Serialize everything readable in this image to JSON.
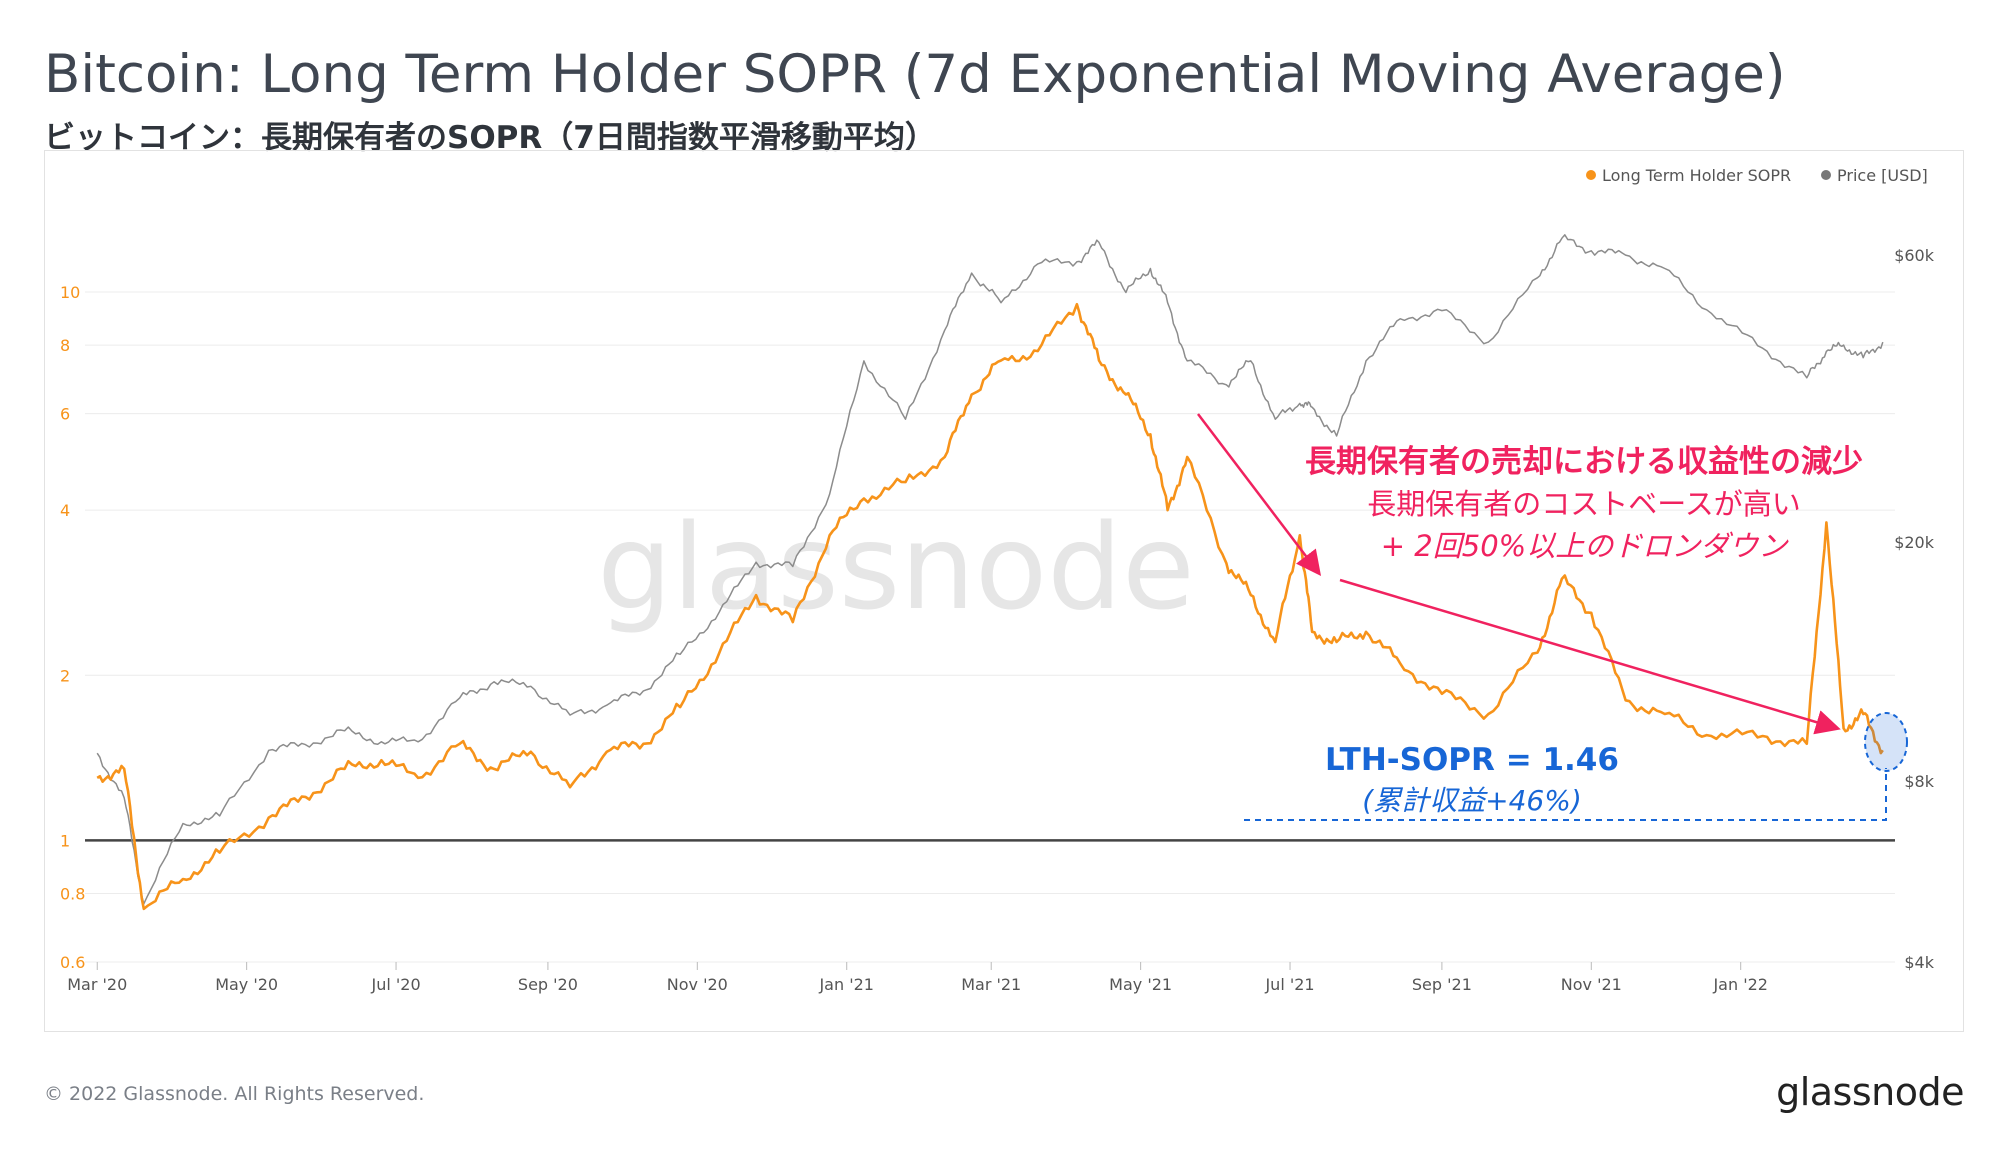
{
  "title": "Bitcoin: Long Term Holder SOPR (7d Exponential Moving Average)",
  "subtitle": "ビットコイン：長期保有者のSOPR（7日間指数平滑移動平均）",
  "watermark": "glassnode",
  "footer": "© 2022 Glassnode. All Rights Reserved.",
  "brand": "glassnode",
  "annotations": {
    "headline": "長期保有者の売却における収益性の減少",
    "line1": "長期保有者のコストベースが高い",
    "line2": "+ 2回50%以上のドロンダウン",
    "metric": "LTH-SOPR = 1.46",
    "metric_note": "(累計収益+46%)"
  },
  "colors": {
    "sopr": "#f7931a",
    "price": "#8c8c8c",
    "accent": "#f0225f",
    "metric": "#1766d6",
    "baseline": "#444444"
  },
  "chart_data": {
    "type": "line",
    "title": "Bitcoin: Long Term Holder SOPR (7d Exponential Moving Average)",
    "legend_position": "top-right",
    "x_tick_labels": [
      "Mar '20",
      "May '20",
      "Jul '20",
      "Sep '20",
      "Nov '20",
      "Jan '21",
      "Mar '21",
      "May '21",
      "Jul '21",
      "Sep '21",
      "Nov '21",
      "Jan '22"
    ],
    "left_axis": {
      "scale": "log",
      "range": [
        0.6,
        16
      ],
      "tick_labels": [
        "0.6",
        "0.8",
        "1",
        "2",
        "4",
        "6",
        "8",
        "10"
      ]
    },
    "right_axis": {
      "scale": "log",
      "unit": "USD",
      "range": [
        4000,
        80000
      ],
      "tick_labels": [
        "$4k",
        "$8k",
        "$20k",
        "$60k"
      ]
    },
    "reference_line": {
      "value": 1
    },
    "series": [
      {
        "name": "Long Term Holder SOPR",
        "axis": "left",
        "dates": [
          "2020-03-01",
          "2020-03-12",
          "2020-03-20",
          "2020-04-05",
          "2020-04-20",
          "2020-05-10",
          "2020-05-25",
          "2020-06-10",
          "2020-06-25",
          "2020-07-10",
          "2020-07-27",
          "2020-08-10",
          "2020-08-25",
          "2020-09-10",
          "2020-09-25",
          "2020-10-10",
          "2020-10-25",
          "2020-11-10",
          "2020-11-25",
          "2020-12-10",
          "2020-12-25",
          "2021-01-08",
          "2021-01-25",
          "2021-02-10",
          "2021-02-21",
          "2021-03-05",
          "2021-03-20",
          "2021-04-05",
          "2021-04-14",
          "2021-04-25",
          "2021-05-05",
          "2021-05-12",
          "2021-05-20",
          "2021-06-05",
          "2021-06-15",
          "2021-06-25",
          "2021-07-05",
          "2021-07-10",
          "2021-07-20",
          "2021-08-01",
          "2021-08-15",
          "2021-09-01",
          "2021-09-20",
          "2021-10-10",
          "2021-10-20",
          "2021-11-01",
          "2021-11-15",
          "2021-12-01",
          "2021-12-20",
          "2022-01-10",
          "2022-01-28",
          "2022-02-05",
          "2022-02-12",
          "2022-02-20",
          "2022-02-28"
        ],
        "values": [
          1.3,
          1.35,
          0.75,
          0.85,
          0.95,
          1.1,
          1.2,
          1.35,
          1.4,
          1.3,
          1.5,
          1.35,
          1.45,
          1.25,
          1.45,
          1.5,
          1.75,
          2.2,
          2.8,
          2.5,
          3.6,
          4.2,
          4.5,
          5.0,
          6.5,
          7.5,
          7.8,
          9.5,
          7.5,
          6.5,
          5.5,
          4.0,
          5.0,
          3.2,
          2.8,
          2.3,
          3.6,
          2.4,
          2.3,
          2.4,
          2.1,
          1.85,
          1.7,
          2.2,
          3.0,
          2.6,
          1.8,
          1.7,
          1.55,
          1.55,
          1.5,
          3.8,
          1.6,
          1.7,
          1.46
        ]
      },
      {
        "name": "Price [USD]",
        "axis": "right",
        "dates": [
          "2020-03-01",
          "2020-03-12",
          "2020-03-20",
          "2020-04-05",
          "2020-04-20",
          "2020-05-10",
          "2020-05-25",
          "2020-06-10",
          "2020-06-25",
          "2020-07-10",
          "2020-07-27",
          "2020-08-10",
          "2020-08-25",
          "2020-09-10",
          "2020-09-25",
          "2020-10-10",
          "2020-10-25",
          "2020-11-10",
          "2020-11-25",
          "2020-12-10",
          "2020-12-25",
          "2021-01-08",
          "2021-01-25",
          "2021-02-10",
          "2021-02-21",
          "2021-03-05",
          "2021-03-20",
          "2021-04-05",
          "2021-04-14",
          "2021-04-25",
          "2021-05-05",
          "2021-05-12",
          "2021-05-20",
          "2021-06-05",
          "2021-06-15",
          "2021-06-25",
          "2021-07-05",
          "2021-07-10",
          "2021-07-20",
          "2021-08-01",
          "2021-08-15",
          "2021-09-01",
          "2021-09-20",
          "2021-10-10",
          "2021-10-20",
          "2021-11-01",
          "2021-11-15",
          "2021-12-01",
          "2021-12-20",
          "2022-01-10",
          "2022-01-28",
          "2022-02-05",
          "2022-02-12",
          "2022-02-20",
          "2022-02-28"
        ],
        "values": [
          8900,
          7500,
          5000,
          6800,
          7000,
          9000,
          9200,
          9700,
          9300,
          9300,
          11000,
          11700,
          11500,
          10300,
          10700,
          11300,
          13000,
          15300,
          18500,
          18200,
          24000,
          40000,
          32000,
          45000,
          56000,
          50000,
          58000,
          58500,
          63000,
          52000,
          57000,
          50000,
          40000,
          36500,
          40000,
          32000,
          34000,
          33500,
          30000,
          40000,
          47000,
          48500,
          43000,
          55000,
          64000,
          61000,
          60000,
          57000,
          48000,
          42000,
          37500,
          41500,
          42500,
          40500,
          43000
        ]
      }
    ]
  }
}
